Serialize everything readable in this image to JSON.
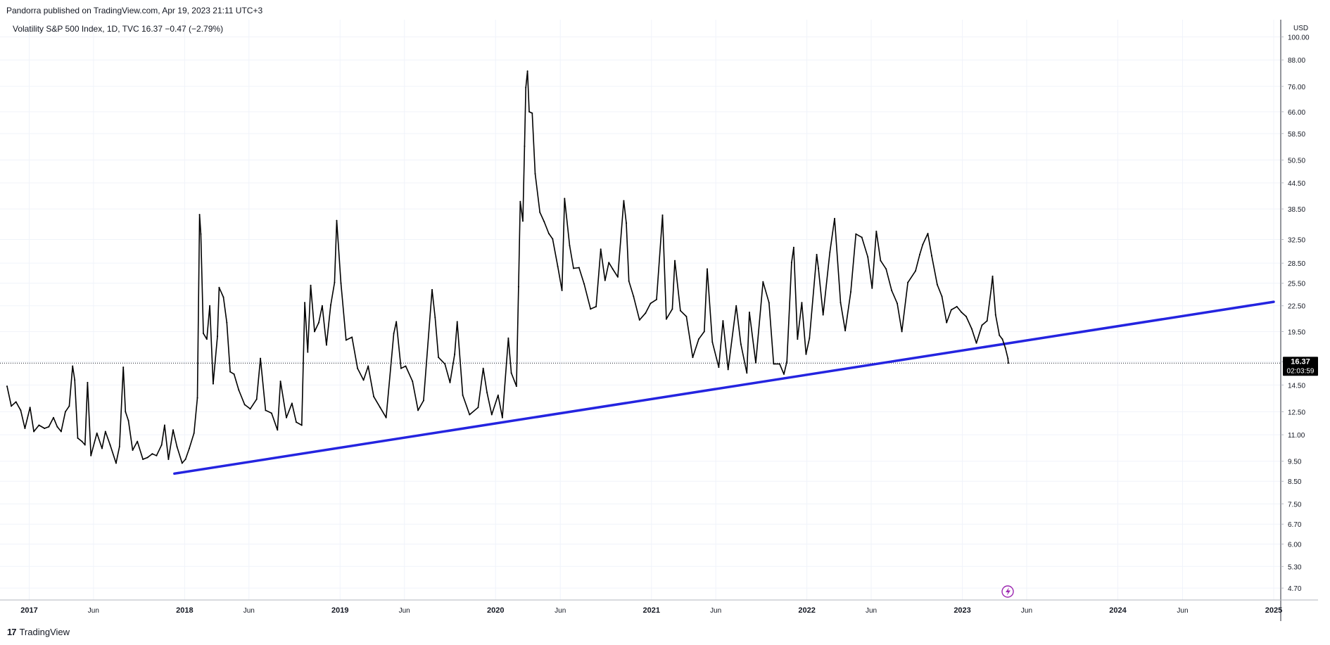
{
  "header": {
    "published_text": "Pandorra published on TradingView.com, Apr 19, 2023 21:11 UTC+3",
    "legend_text": "Volatility S&P 500 Index, 1D, TVC  16.37  −0.47  (−2.79%)"
  },
  "footer": {
    "logo_mark": "17",
    "logo_text": "TradingView"
  },
  "price_badge": {
    "value": "16.37",
    "countdown": "02:03:59"
  },
  "colors": {
    "price_line": "#000000",
    "trendline": "#2424e0",
    "badge": "#000000",
    "event_icon": "#9c27b0",
    "grid": "#f0f3fa"
  },
  "event_icon": "lightning-icon",
  "chart_data": {
    "type": "line",
    "title": "Volatility S&P 500 Index, 1D, TVC",
    "y_scale": "log",
    "y_unit": "USD",
    "ylim": [
      4.4,
      110
    ],
    "y_ticks": [
      "100.00",
      "88.00",
      "76.00",
      "66.00",
      "58.50",
      "50.50",
      "44.50",
      "38.50",
      "32.50",
      "28.50",
      "25.50",
      "22.50",
      "19.50",
      "16.50",
      "14.50",
      "12.50",
      "11.00",
      "9.50",
      "8.50",
      "7.50",
      "6.70",
      "6.00",
      "5.30",
      "4.70"
    ],
    "x_ticks": [
      {
        "label": "2017",
        "date": "2017-01-01",
        "bold": true
      },
      {
        "label": "Jun",
        "date": "2017-06-01",
        "bold": false
      },
      {
        "label": "2018",
        "date": "2018-01-01",
        "bold": true
      },
      {
        "label": "Jun",
        "date": "2018-06-01",
        "bold": false
      },
      {
        "label": "2019",
        "date": "2019-01-01",
        "bold": true
      },
      {
        "label": "Jun",
        "date": "2019-06-01",
        "bold": false
      },
      {
        "label": "2020",
        "date": "2020-01-01",
        "bold": true
      },
      {
        "label": "Jun",
        "date": "2020-06-01",
        "bold": false
      },
      {
        "label": "2021",
        "date": "2021-01-01",
        "bold": true
      },
      {
        "label": "Jun",
        "date": "2021-06-01",
        "bold": false
      },
      {
        "label": "2022",
        "date": "2022-01-01",
        "bold": true
      },
      {
        "label": "Jun",
        "date": "2022-06-01",
        "bold": false
      },
      {
        "label": "2023",
        "date": "2023-01-01",
        "bold": true
      },
      {
        "label": "Jun",
        "date": "2023-06-01",
        "bold": false
      },
      {
        "label": "2024",
        "date": "2024-01-01",
        "bold": true
      },
      {
        "label": "Jun",
        "date": "2024-06-01",
        "bold": false
      },
      {
        "label": "2025",
        "date": "2025-01-01",
        "bold": true
      }
    ],
    "last_value": 16.37,
    "series": [
      {
        "points": [
          [
            "2016-11-10",
            14.4
          ],
          [
            "2016-11-20",
            12.9
          ],
          [
            "2016-12-01",
            13.2
          ],
          [
            "2016-12-12",
            12.6
          ],
          [
            "2016-12-22",
            11.4
          ],
          [
            "2017-01-03",
            12.8
          ],
          [
            "2017-01-12",
            11.2
          ],
          [
            "2017-01-24",
            11.6
          ],
          [
            "2017-02-06",
            11.4
          ],
          [
            "2017-02-16",
            11.5
          ],
          [
            "2017-02-27",
            12.1
          ],
          [
            "2017-03-08",
            11.5
          ],
          [
            "2017-03-17",
            11.2
          ],
          [
            "2017-03-27",
            12.5
          ],
          [
            "2017-04-05",
            12.9
          ],
          [
            "2017-04-13",
            16.1
          ],
          [
            "2017-04-18",
            14.9
          ],
          [
            "2017-04-25",
            10.8
          ],
          [
            "2017-05-05",
            10.6
          ],
          [
            "2017-05-12",
            10.4
          ],
          [
            "2017-05-18",
            14.7
          ],
          [
            "2017-05-26",
            9.8
          ],
          [
            "2017-06-09",
            11.1
          ],
          [
            "2017-06-21",
            10.2
          ],
          [
            "2017-06-29",
            11.2
          ],
          [
            "2017-07-10",
            10.4
          ],
          [
            "2017-07-24",
            9.4
          ],
          [
            "2017-08-01",
            10.3
          ],
          [
            "2017-08-10",
            16.0
          ],
          [
            "2017-08-15",
            12.5
          ],
          [
            "2017-08-22",
            11.9
          ],
          [
            "2017-09-01",
            10.1
          ],
          [
            "2017-09-12",
            10.6
          ],
          [
            "2017-09-25",
            9.6
          ],
          [
            "2017-10-06",
            9.7
          ],
          [
            "2017-10-17",
            9.9
          ],
          [
            "2017-10-27",
            9.8
          ],
          [
            "2017-11-08",
            10.4
          ],
          [
            "2017-11-15",
            11.6
          ],
          [
            "2017-11-24",
            9.6
          ],
          [
            "2017-12-05",
            11.3
          ],
          [
            "2017-12-14",
            10.3
          ],
          [
            "2017-12-26",
            9.4
          ],
          [
            "2018-01-03",
            9.6
          ],
          [
            "2018-01-12",
            10.2
          ],
          [
            "2018-01-23",
            11.1
          ],
          [
            "2018-01-31",
            13.5
          ],
          [
            "2018-02-05",
            37.3
          ],
          [
            "2018-02-08",
            33.5
          ],
          [
            "2018-02-14",
            19.3
          ],
          [
            "2018-02-22",
            18.7
          ],
          [
            "2018-03-01",
            22.5
          ],
          [
            "2018-03-09",
            14.6
          ],
          [
            "2018-03-19",
            19.0
          ],
          [
            "2018-03-23",
            24.9
          ],
          [
            "2018-04-02",
            23.6
          ],
          [
            "2018-04-10",
            20.5
          ],
          [
            "2018-04-18",
            15.6
          ],
          [
            "2018-04-27",
            15.4
          ],
          [
            "2018-05-08",
            14.1
          ],
          [
            "2018-05-22",
            13.0
          ],
          [
            "2018-06-04",
            12.7
          ],
          [
            "2018-06-19",
            13.4
          ],
          [
            "2018-06-28",
            16.8
          ],
          [
            "2018-07-10",
            12.6
          ],
          [
            "2018-07-24",
            12.4
          ],
          [
            "2018-08-07",
            11.3
          ],
          [
            "2018-08-14",
            14.8
          ],
          [
            "2018-08-28",
            12.1
          ],
          [
            "2018-09-10",
            13.1
          ],
          [
            "2018-09-20",
            11.8
          ],
          [
            "2018-10-03",
            11.6
          ],
          [
            "2018-10-10",
            22.9
          ],
          [
            "2018-10-17",
            17.4
          ],
          [
            "2018-10-24",
            25.2
          ],
          [
            "2018-11-02",
            19.5
          ],
          [
            "2018-11-12",
            20.5
          ],
          [
            "2018-11-20",
            22.5
          ],
          [
            "2018-11-30",
            18.1
          ],
          [
            "2018-12-10",
            22.6
          ],
          [
            "2018-12-19",
            25.6
          ],
          [
            "2018-12-24",
            36.1
          ],
          [
            "2019-01-03",
            25.5
          ],
          [
            "2019-01-15",
            18.6
          ],
          [
            "2019-01-29",
            18.9
          ],
          [
            "2019-02-11",
            15.9
          ],
          [
            "2019-02-25",
            14.9
          ],
          [
            "2019-03-08",
            16.1
          ],
          [
            "2019-03-21",
            13.6
          ],
          [
            "2019-04-05",
            12.8
          ],
          [
            "2019-04-19",
            12.1
          ],
          [
            "2019-05-07",
            19.3
          ],
          [
            "2019-05-13",
            20.6
          ],
          [
            "2019-05-24",
            15.9
          ],
          [
            "2019-06-04",
            16.1
          ],
          [
            "2019-06-20",
            14.8
          ],
          [
            "2019-07-03",
            12.6
          ],
          [
            "2019-07-16",
            13.3
          ],
          [
            "2019-08-05",
            24.6
          ],
          [
            "2019-08-12",
            21.1
          ],
          [
            "2019-08-20",
            16.9
          ],
          [
            "2019-09-04",
            16.3
          ],
          [
            "2019-09-16",
            14.7
          ],
          [
            "2019-09-27",
            17.2
          ],
          [
            "2019-10-03",
            20.6
          ],
          [
            "2019-10-16",
            13.7
          ],
          [
            "2019-11-01",
            12.3
          ],
          [
            "2019-11-21",
            12.8
          ],
          [
            "2019-12-03",
            15.9
          ],
          [
            "2019-12-12",
            13.9
          ],
          [
            "2019-12-23",
            12.3
          ],
          [
            "2020-01-07",
            13.7
          ],
          [
            "2020-01-17",
            12.1
          ],
          [
            "2020-01-31",
            18.8
          ],
          [
            "2020-02-07",
            15.5
          ],
          [
            "2020-02-19",
            14.4
          ],
          [
            "2020-02-24",
            25.0
          ],
          [
            "2020-02-28",
            40.1
          ],
          [
            "2020-03-05",
            36.0
          ],
          [
            "2020-03-09",
            54.5
          ],
          [
            "2020-03-12",
            75.5
          ],
          [
            "2020-03-16",
            82.7
          ],
          [
            "2020-03-20",
            66.0
          ],
          [
            "2020-03-27",
            65.5
          ],
          [
            "2020-04-03",
            46.8
          ],
          [
            "2020-04-14",
            37.8
          ],
          [
            "2020-04-24",
            35.9
          ],
          [
            "2020-05-05",
            33.6
          ],
          [
            "2020-05-14",
            32.6
          ],
          [
            "2020-05-26",
            28.0
          ],
          [
            "2020-06-05",
            24.5
          ],
          [
            "2020-06-11",
            40.8
          ],
          [
            "2020-06-23",
            31.4
          ],
          [
            "2020-07-02",
            27.7
          ],
          [
            "2020-07-15",
            27.8
          ],
          [
            "2020-07-27",
            25.4
          ],
          [
            "2020-08-11",
            22.1
          ],
          [
            "2020-08-24",
            22.4
          ],
          [
            "2020-09-04",
            30.8
          ],
          [
            "2020-09-14",
            25.9
          ],
          [
            "2020-09-23",
            28.6
          ],
          [
            "2020-10-02",
            27.6
          ],
          [
            "2020-10-14",
            26.4
          ],
          [
            "2020-10-28",
            40.3
          ],
          [
            "2020-11-03",
            35.6
          ],
          [
            "2020-11-09",
            25.8
          ],
          [
            "2020-11-20",
            23.7
          ],
          [
            "2020-12-04",
            20.8
          ],
          [
            "2020-12-18",
            21.6
          ],
          [
            "2020-12-30",
            22.8
          ],
          [
            "2021-01-13",
            23.3
          ],
          [
            "2021-01-27",
            37.2
          ],
          [
            "2021-02-05",
            20.9
          ],
          [
            "2021-02-19",
            22.1
          ],
          [
            "2021-02-25",
            28.9
          ],
          [
            "2021-03-10",
            21.9
          ],
          [
            "2021-03-24",
            21.2
          ],
          [
            "2021-04-08",
            16.9
          ],
          [
            "2021-04-22",
            18.7
          ],
          [
            "2021-05-05",
            19.5
          ],
          [
            "2021-05-12",
            27.6
          ],
          [
            "2021-05-24",
            18.4
          ],
          [
            "2021-06-08",
            16.0
          ],
          [
            "2021-06-18",
            20.7
          ],
          [
            "2021-06-30",
            15.8
          ],
          [
            "2021-07-19",
            22.5
          ],
          [
            "2021-07-30",
            18.2
          ],
          [
            "2021-08-13",
            15.5
          ],
          [
            "2021-08-19",
            21.7
          ],
          [
            "2021-09-03",
            16.4
          ],
          [
            "2021-09-20",
            25.7
          ],
          [
            "2021-10-04",
            22.9
          ],
          [
            "2021-10-15",
            16.3
          ],
          [
            "2021-10-29",
            16.3
          ],
          [
            "2021-11-08",
            15.4
          ],
          [
            "2021-11-15",
            16.5
          ],
          [
            "2021-11-26",
            28.6
          ],
          [
            "2021-12-01",
            31.1
          ],
          [
            "2021-12-10",
            18.7
          ],
          [
            "2021-12-20",
            22.9
          ],
          [
            "2021-12-30",
            17.2
          ],
          [
            "2022-01-07",
            18.8
          ],
          [
            "2022-01-24",
            29.9
          ],
          [
            "2022-01-28",
            27.7
          ],
          [
            "2022-02-08",
            21.4
          ],
          [
            "2022-02-24",
            30.3
          ],
          [
            "2022-03-07",
            36.5
          ],
          [
            "2022-03-21",
            22.9
          ],
          [
            "2022-04-01",
            19.6
          ],
          [
            "2022-04-14",
            24.3
          ],
          [
            "2022-04-26",
            33.5
          ],
          [
            "2022-05-10",
            32.9
          ],
          [
            "2022-05-24",
            29.5
          ],
          [
            "2022-06-03",
            24.8
          ],
          [
            "2022-06-13",
            34.0
          ],
          [
            "2022-06-23",
            28.9
          ],
          [
            "2022-07-06",
            27.6
          ],
          [
            "2022-07-19",
            24.5
          ],
          [
            "2022-08-01",
            22.8
          ],
          [
            "2022-08-12",
            19.5
          ],
          [
            "2022-08-26",
            25.6
          ],
          [
            "2022-09-13",
            27.3
          ],
          [
            "2022-09-23",
            29.9
          ],
          [
            "2022-09-30",
            31.6
          ],
          [
            "2022-10-12",
            33.6
          ],
          [
            "2022-10-21",
            29.7
          ],
          [
            "2022-11-03",
            25.3
          ],
          [
            "2022-11-14",
            23.7
          ],
          [
            "2022-11-25",
            20.5
          ],
          [
            "2022-12-06",
            22.0
          ],
          [
            "2022-12-19",
            22.4
          ],
          [
            "2022-12-30",
            21.7
          ],
          [
            "2023-01-10",
            21.2
          ],
          [
            "2023-01-23",
            19.8
          ],
          [
            "2023-02-03",
            18.3
          ],
          [
            "2023-02-16",
            20.2
          ],
          [
            "2023-02-28",
            20.7
          ],
          [
            "2023-03-10",
            24.8
          ],
          [
            "2023-03-13",
            26.5
          ],
          [
            "2023-03-20",
            21.4
          ],
          [
            "2023-03-29",
            19.1
          ],
          [
            "2023-04-05",
            18.7
          ],
          [
            "2023-04-12",
            17.8
          ],
          [
            "2023-04-18",
            16.8
          ],
          [
            "2023-04-19",
            16.37
          ]
        ]
      }
    ],
    "trendline": {
      "start": [
        "2017-12-08",
        8.87
      ],
      "end": [
        "2025-01-01",
        23.0
      ]
    }
  }
}
